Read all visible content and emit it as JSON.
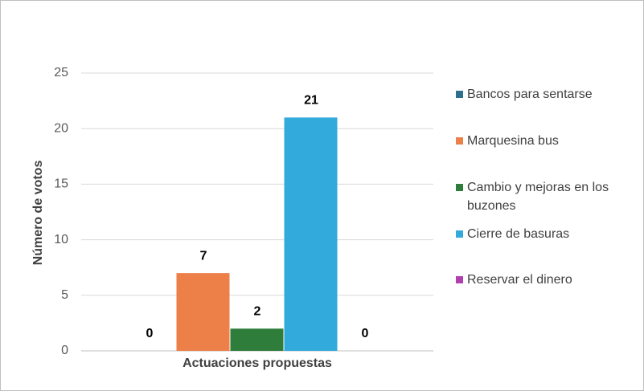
{
  "chart_data": {
    "type": "bar",
    "y_label": "Número de votos",
    "categories": [
      "Actuaciones propuestas"
    ],
    "series": [
      {
        "name": "Bancos para sentarse",
        "color": "#2e6f8e",
        "values": [
          0
        ]
      },
      {
        "name": "Marquesina bus",
        "color": "#ec8048",
        "values": [
          7
        ]
      },
      {
        "name": "Cambio y mejoras en los buzones",
        "color": "#2e7d3a",
        "values": [
          2
        ]
      },
      {
        "name": "Cierre de basuras",
        "color": "#32aadc",
        "values": [
          21
        ]
      },
      {
        "name": "Reservar el dinero",
        "color": "#b040b0",
        "values": [
          0
        ]
      }
    ],
    "ylim": [
      0,
      25
    ],
    "yticks": [
      0,
      5,
      10,
      15,
      20,
      25
    ],
    "grid": true,
    "legend": "right"
  }
}
